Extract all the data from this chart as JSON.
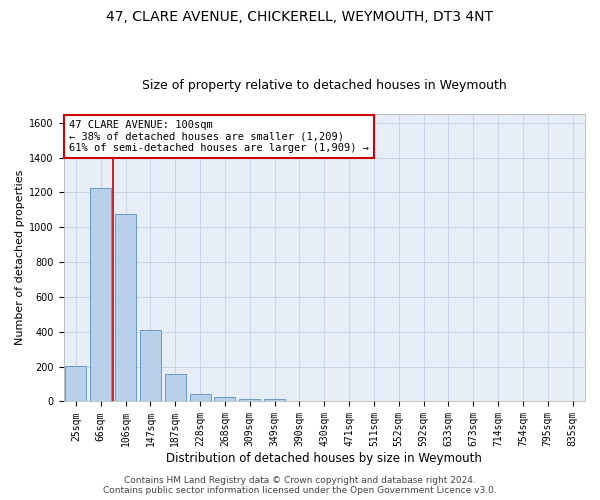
{
  "title": "47, CLARE AVENUE, CHICKERELL, WEYMOUTH, DT3 4NT",
  "subtitle": "Size of property relative to detached houses in Weymouth",
  "xlabel": "Distribution of detached houses by size in Weymouth",
  "ylabel": "Number of detached properties",
  "categories": [
    "25sqm",
    "66sqm",
    "106sqm",
    "147sqm",
    "187sqm",
    "228sqm",
    "268sqm",
    "309sqm",
    "349sqm",
    "390sqm",
    "430sqm",
    "471sqm",
    "511sqm",
    "552sqm",
    "592sqm",
    "633sqm",
    "673sqm",
    "714sqm",
    "754sqm",
    "795sqm",
    "835sqm"
  ],
  "values": [
    205,
    1225,
    1075,
    410,
    160,
    45,
    25,
    15,
    15,
    0,
    0,
    0,
    0,
    0,
    0,
    0,
    0,
    0,
    0,
    0,
    0
  ],
  "bar_color": "#b8d0ea",
  "bar_edge_color": "#6699cc",
  "red_line_color": "#cc0000",
  "annotation_line1": "47 CLARE AVENUE: 100sqm",
  "annotation_line2": "← 38% of detached houses are smaller (1,209)",
  "annotation_line3": "61% of semi-detached houses are larger (1,909) →",
  "annotation_box_color": "#ffffff",
  "annotation_box_edge_color": "#cc0000",
  "grid_color": "#c8d4e8",
  "bg_color": "#e8eef8",
  "ylim": [
    0,
    1650
  ],
  "yticks": [
    0,
    200,
    400,
    600,
    800,
    1000,
    1200,
    1400,
    1600
  ],
  "footer": "Contains HM Land Registry data © Crown copyright and database right 2024.\nContains public sector information licensed under the Open Government Licence v3.0.",
  "title_fontsize": 10,
  "subtitle_fontsize": 9,
  "xlabel_fontsize": 8.5,
  "ylabel_fontsize": 8,
  "tick_fontsize": 7,
  "annot_fontsize": 7.5,
  "footer_fontsize": 6.5
}
